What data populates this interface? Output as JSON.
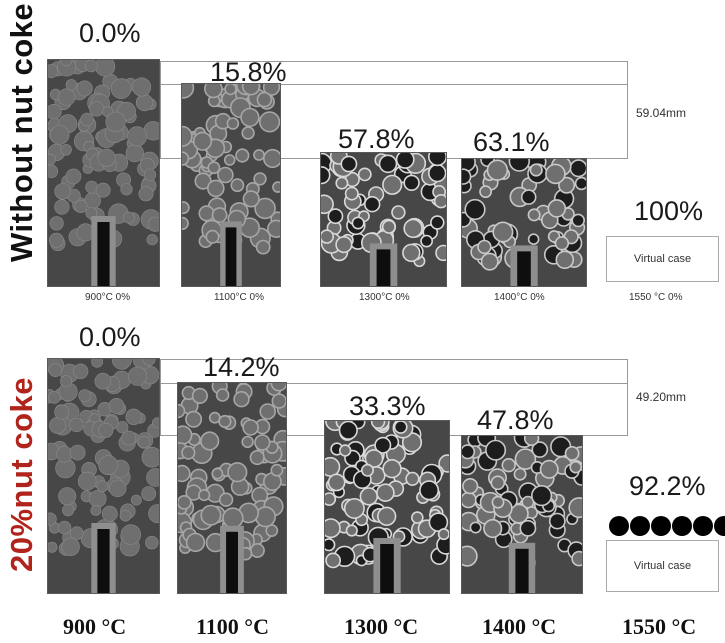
{
  "rows": [
    {
      "label": "Without nut coke",
      "label_color": "#111111",
      "height": "59.04mm",
      "values": [
        "0.0%",
        "15.8%",
        "57.8%",
        "63.1%",
        "100%"
      ],
      "captions": [
        "900°C 0%",
        "1100°C 0%",
        "1300°C 0%",
        "1400°C 0%",
        "1550 °C 0%"
      ],
      "virtual": "Virtual case"
    },
    {
      "label": "20%nut coke",
      "label_color": "#b0241c",
      "height": "49.20mm",
      "values": [
        "0.0%",
        "14.2%",
        "33.3%",
        "47.8%",
        "92.2%"
      ],
      "virtual": "Virtual case"
    }
  ],
  "temperatures": [
    "900 °C",
    "1100 °C",
    "1300 °C",
    "1400 °C",
    "1550 °C"
  ]
}
